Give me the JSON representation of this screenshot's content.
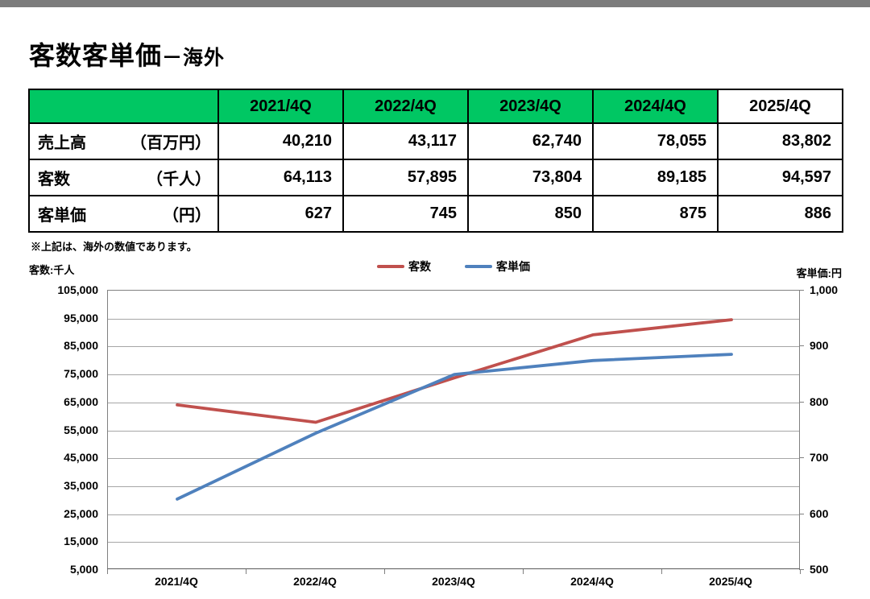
{
  "page_title": {
    "main": "客数客単価",
    "suffix": "－海外"
  },
  "note": "※上記は、海外の数値であります。",
  "table": {
    "corner_label": "",
    "columns": [
      "2021/4Q",
      "2022/4Q",
      "2023/4Q",
      "2024/4Q",
      "2025/4Q"
    ],
    "rows": [
      {
        "label": "売上高",
        "unit": "（百万円）",
        "values": [
          "40,210",
          "43,117",
          "62,740",
          "78,055",
          "83,802"
        ]
      },
      {
        "label": "客数",
        "unit": "（千人）",
        "values": [
          "64,113",
          "57,895",
          "73,804",
          "89,185",
          "94,597"
        ]
      },
      {
        "label": "客単価",
        "unit": "（円）",
        "values": [
          "627",
          "745",
          "850",
          "875",
          "886"
        ]
      }
    ]
  },
  "chart_data": {
    "type": "line",
    "categories": [
      "2021/4Q",
      "2022/4Q",
      "2023/4Q",
      "2024/4Q",
      "2025/4Q"
    ],
    "series": [
      {
        "name": "客数",
        "axis": "left",
        "color": "#C0504D",
        "values": [
          64113,
          57895,
          73804,
          89185,
          94597
        ]
      },
      {
        "name": "客単価",
        "axis": "right",
        "color": "#4F81BD",
        "values": [
          627,
          745,
          850,
          875,
          886
        ]
      }
    ],
    "left_axis": {
      "title": "客数:千人",
      "min": 5000,
      "max": 105000,
      "step": 10000,
      "tick_labels": [
        "105,000",
        "95,000",
        "85,000",
        "75,000",
        "65,000",
        "55,000",
        "45,000",
        "35,000",
        "25,000",
        "15,000",
        "5,000"
      ]
    },
    "right_axis": {
      "title": "客単価:円",
      "min": 500,
      "max": 1000,
      "label_step": 100,
      "tick_labels": [
        "1,000",
        "900",
        "800",
        "700",
        "600",
        "500"
      ]
    },
    "grid": true,
    "legend_position": "top",
    "colors": {
      "grid": "#A6A6A6",
      "axis": "#808080",
      "table_header_green": "#00C763",
      "top_bar": "#7C7C7C"
    }
  }
}
